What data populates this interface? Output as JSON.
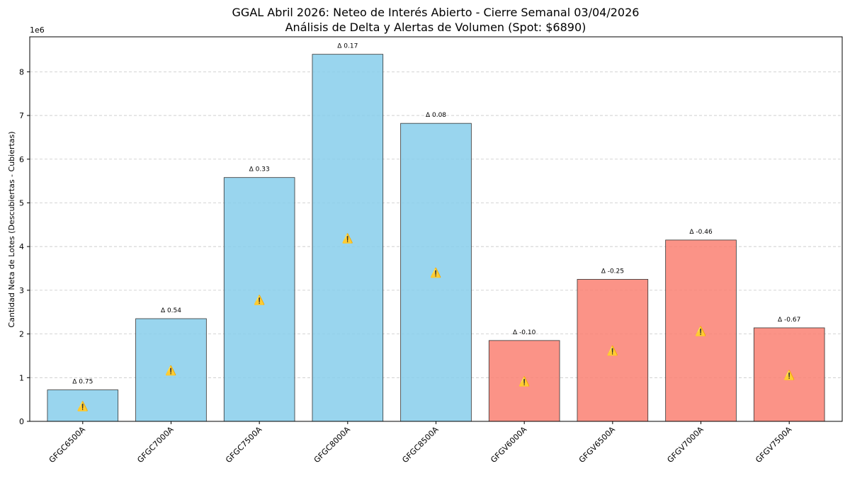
{
  "chart_data": {
    "type": "bar",
    "title": "GGAL Abril 2026: Neteo de Interés Abierto - Cierre Semanal 03/04/2026",
    "subtitle": "Análisis de Delta y Alertas de Volumen (Spot: $6890)",
    "xlabel": "",
    "ylabel": "Cantidad Neta de Lotes (Descubiertas - Cubiertas)",
    "y_scale_label": "1e6",
    "ylim": [
      0,
      8.8
    ],
    "yticks": [
      0,
      1,
      2,
      3,
      4,
      5,
      6,
      7,
      8
    ],
    "grid": "horizontal dashed",
    "categories": [
      "GFGC6500A",
      "GFGC7000A",
      "GFGC7500A",
      "GFGC8000A",
      "GFGC8500A",
      "GFGV6000A",
      "GFGV6500A",
      "GFGV7000A",
      "GFGV7500A"
    ],
    "values": [
      0.72,
      2.35,
      5.58,
      8.4,
      6.82,
      1.85,
      3.25,
      4.15,
      2.14
    ],
    "delta_labels": [
      "Δ 0.75",
      "Δ 0.54",
      "Δ 0.33",
      "Δ 0.17",
      "Δ 0.08",
      "Δ -0.10",
      "Δ -0.25",
      "Δ -0.46",
      "Δ -0.67"
    ],
    "alert_labels": [
      "⚠️",
      "⚠️",
      "⚠️",
      "⚠️",
      "⚠️",
      "⚠️",
      "⚠️",
      "⚠️",
      "⚠️"
    ],
    "bar_colors": [
      "#87ceeb",
      "#87ceeb",
      "#87ceeb",
      "#87ceeb",
      "#87ceeb",
      "#fa8072",
      "#fa8072",
      "#fa8072",
      "#fa8072"
    ]
  }
}
